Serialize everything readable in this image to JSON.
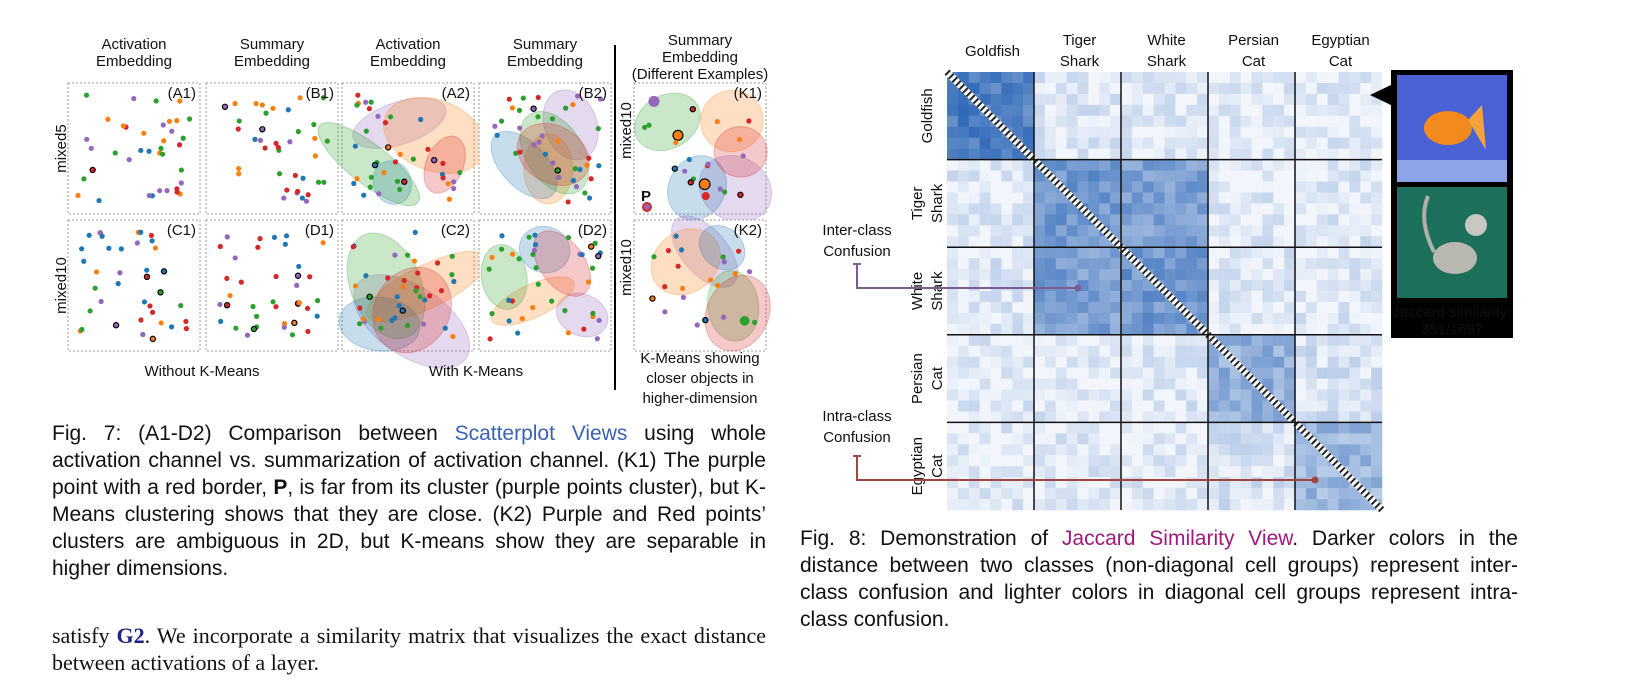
{
  "figure7": {
    "column_headers": [
      [
        "Activation",
        "Embedding"
      ],
      [
        "Summary",
        "Embedding"
      ],
      [
        "Activation",
        "Embedding"
      ],
      [
        "Summary",
        "Embedding"
      ],
      [
        "Summary",
        "Embedding",
        "(Different Examples)"
      ]
    ],
    "panels": [
      [
        "(A1)",
        "(B1)",
        "(A2)",
        "(B2)",
        "(K1)"
      ],
      [
        "(C1)",
        "(D1)",
        "(C2)",
        "(D2)",
        "(K2)"
      ]
    ],
    "row_labels": [
      "mixed5",
      "mixed10"
    ],
    "k_row_labels": [
      "mixed10",
      "mixed10"
    ],
    "point_label": "P",
    "group_labels": [
      "Without K-Means",
      "With K-Means"
    ],
    "k_note": [
      "K-Means showing",
      "closer objects in",
      "higher-dimension"
    ],
    "caption": [
      "Fig. 7: (A1-D2) Comparison between ",
      "Scatterplot Views",
      " using whole activation channel vs. summarization of activation channel. (K1) The purple point with a red border, ",
      "P",
      ", is far from its cluster (purple points cluster), but K-Means clustering shows that they are close. (K2) Purple and Red points’ clusters are ambiguous in 2D, but K-means show they are separable in higher dimensions."
    ]
  },
  "body_text": [
    "satisfy ",
    "G2",
    ". We incorporate a similarity matrix that visualizes the exact distance between activations of a layer."
  ],
  "figure8": {
    "classes": [
      [
        "Goldfish"
      ],
      [
        "Tiger",
        "Shark"
      ],
      [
        "White",
        "Shark"
      ],
      [
        "Persian",
        "Cat"
      ],
      [
        "Egyptian",
        "Cat"
      ]
    ],
    "annotations": [
      [
        "Inter-class",
        "Confusion"
      ],
      [
        "Intra-class",
        "Confusion"
      ]
    ],
    "image_caption": [
      "Jaccard similarity:",
      "351/1697"
    ],
    "caption": [
      "Fig. 8: Demonstration of ",
      "Jaccard Similarity View",
      ". Darker colors in the distance between two classes (non-diagonal cell groups) represent inter-class confusion and lighter colors in diagonal cell groups represent intra-class confusion."
    ]
  }
}
